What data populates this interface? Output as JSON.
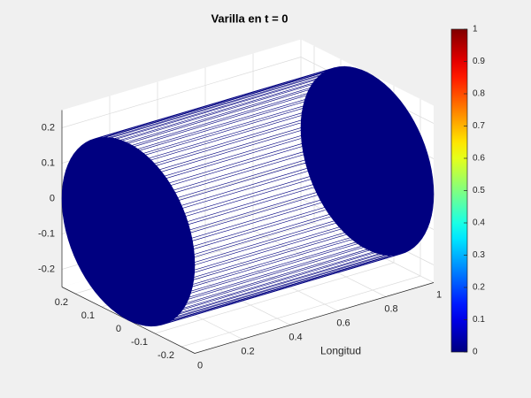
{
  "chart_data": {
    "type": "surface3d",
    "title": "Varilla en t = 0",
    "xlabel": "Longitud",
    "xlim": [
      0,
      1
    ],
    "ylim": [
      -0.25,
      0.25
    ],
    "zlim": [
      -0.25,
      0.25
    ],
    "xticks": [
      0,
      0.2,
      0.4,
      0.6,
      0.8,
      1
    ],
    "yticks": [
      -0.2,
      -0.1,
      0,
      0.1,
      0.2
    ],
    "zticks": [
      -0.2,
      -0.1,
      0,
      0.1,
      0.2
    ],
    "surface": {
      "shape": "cylinder",
      "radius": 0.25,
      "length": 1,
      "value": 0
    },
    "colormap": "jet",
    "clim": [
      0,
      1
    ],
    "colorbar_ticks": [
      0,
      0.1,
      0.2,
      0.3,
      0.4,
      0.5,
      0.6,
      0.7,
      0.8,
      0.9,
      1
    ],
    "grid": true
  }
}
